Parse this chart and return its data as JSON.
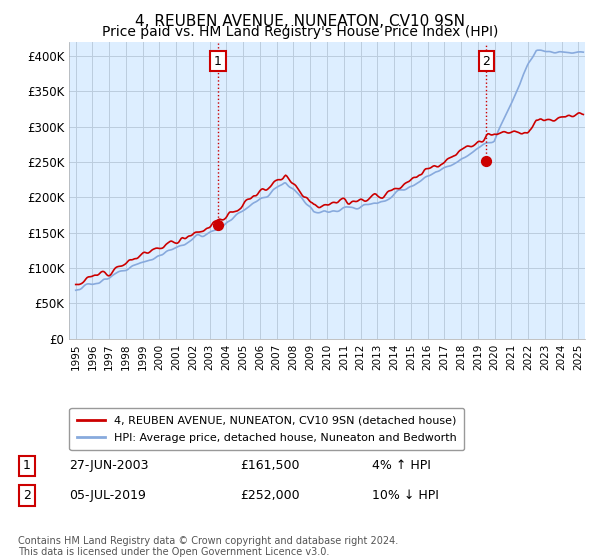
{
  "title": "4, REUBEN AVENUE, NUNEATON, CV10 9SN",
  "subtitle": "Price paid vs. HM Land Registry's House Price Index (HPI)",
  "title_fontsize": 11,
  "subtitle_fontsize": 10,
  "ylim": [
    0,
    420000
  ],
  "yticks": [
    0,
    50000,
    100000,
    150000,
    200000,
    250000,
    300000,
    350000,
    400000
  ],
  "ytick_labels": [
    "£0",
    "£50K",
    "£100K",
    "£150K",
    "£200K",
    "£250K",
    "£300K",
    "£350K",
    "£400K"
  ],
  "line_color_red": "#cc0000",
  "line_color_blue": "#88aadd",
  "chart_bg_color": "#ddeeff",
  "background_color": "#ffffff",
  "grid_color": "#bbccdd",
  "legend_label_red": "4, REUBEN AVENUE, NUNEATON, CV10 9SN (detached house)",
  "legend_label_blue": "HPI: Average price, detached house, Nuneaton and Bedworth",
  "annotation1_label": "1",
  "annotation1_date": "27-JUN-2003",
  "annotation1_price": "£161,500",
  "annotation1_hpi": "4% ↑ HPI",
  "annotation2_label": "2",
  "annotation2_date": "05-JUL-2019",
  "annotation2_price": "£252,000",
  "annotation2_hpi": "10% ↓ HPI",
  "footnote": "Contains HM Land Registry data © Crown copyright and database right 2024.\nThis data is licensed under the Open Government Licence v3.0.",
  "sale1_year": 2003.49,
  "sale1_value": 161500,
  "sale2_year": 2019.51,
  "sale2_value": 252000,
  "xlim": [
    1994.6,
    2025.4
  ]
}
